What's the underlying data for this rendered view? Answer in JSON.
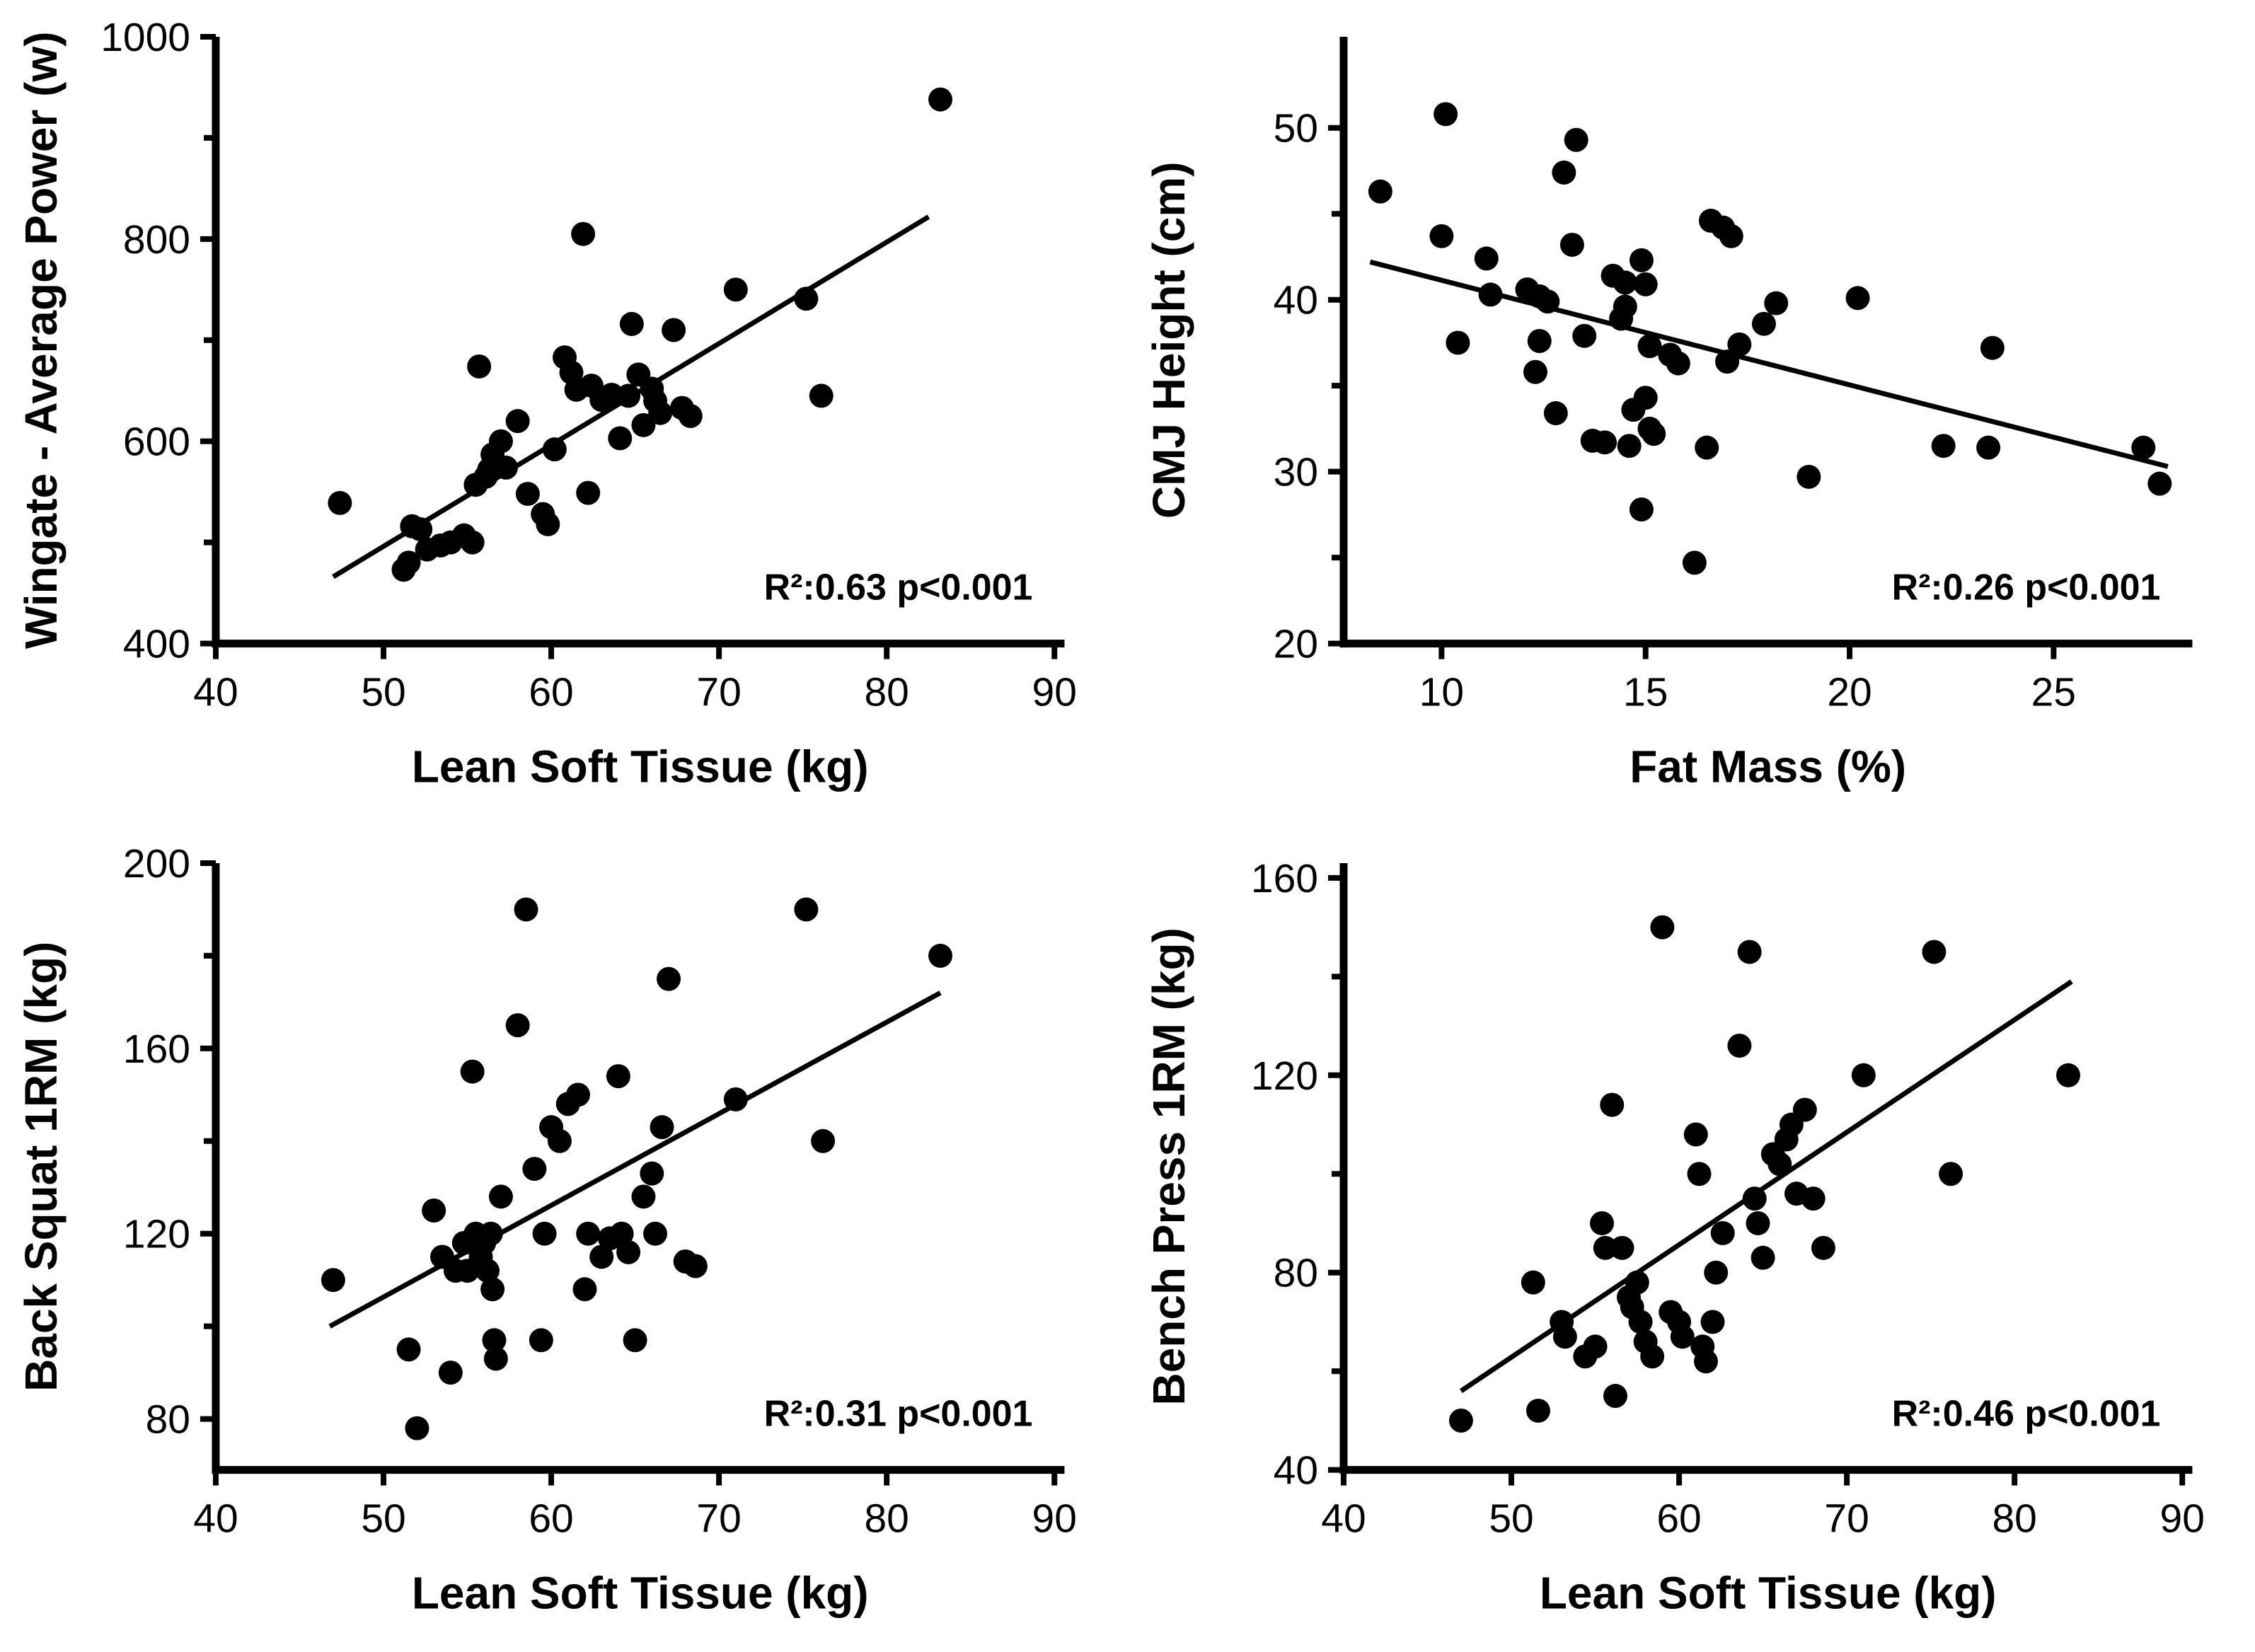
{
  "figure": {
    "background": "#ffffff",
    "ink_color": "#000000",
    "panel_count": 4
  },
  "chart_data": [
    {
      "id": "wingate",
      "type": "scatter",
      "title": "",
      "xlabel": "Lean Soft Tissue (kg)",
      "ylabel": "Wingate - Average Power (w)",
      "annotation": "R²:0.63 p<0.001",
      "legend": "none",
      "grid": false,
      "xlim": [
        40,
        90
      ],
      "ylim": [
        400,
        1000
      ],
      "xlim_draw": [
        40,
        90.6
      ],
      "ylim_draw": [
        400,
        1000
      ],
      "xticks": [
        40,
        50,
        60,
        70,
        80,
        90
      ],
      "yticks_major": [
        400,
        600,
        800,
        1000
      ],
      "yticks_minor": [
        500,
        700,
        900
      ],
      "trendline": {
        "x1": 47.0,
        "y1": 466,
        "x2": 82.5,
        "y2": 822
      },
      "points": [
        [
          47.4,
          539
        ],
        [
          51.2,
          473
        ],
        [
          51.5,
          480
        ],
        [
          51.7,
          516
        ],
        [
          52.2,
          513
        ],
        [
          52.6,
          493
        ],
        [
          53.4,
          497
        ],
        [
          54.0,
          500
        ],
        [
          54.8,
          507
        ],
        [
          55.3,
          500
        ],
        [
          55.5,
          557
        ],
        [
          56.1,
          565
        ],
        [
          56.3,
          572
        ],
        [
          56.5,
          587
        ],
        [
          55.7,
          674
        ],
        [
          57.0,
          600
        ],
        [
          57.3,
          574
        ],
        [
          58.0,
          620
        ],
        [
          58.6,
          548
        ],
        [
          59.5,
          528
        ],
        [
          59.8,
          518
        ],
        [
          60.2,
          592
        ],
        [
          60.8,
          683
        ],
        [
          61.2,
          668
        ],
        [
          61.5,
          651
        ],
        [
          61.9,
          805
        ],
        [
          62.2,
          549
        ],
        [
          62.4,
          655
        ],
        [
          63.0,
          641
        ],
        [
          63.6,
          646
        ],
        [
          64.1,
          603
        ],
        [
          64.6,
          645
        ],
        [
          64.8,
          716
        ],
        [
          65.2,
          666
        ],
        [
          65.5,
          616
        ],
        [
          66.0,
          652
        ],
        [
          66.2,
          640
        ],
        [
          66.5,
          628
        ],
        [
          67.3,
          710
        ],
        [
          67.8,
          633
        ],
        [
          68.3,
          625
        ],
        [
          71.0,
          750
        ],
        [
          75.2,
          741
        ],
        [
          76.1,
          645
        ],
        [
          83.2,
          938
        ]
      ]
    },
    {
      "id": "cmj",
      "type": "scatter",
      "title": "",
      "xlabel": "Fat Mass (%)",
      "ylabel": "CMJ Height (cm)",
      "annotation": "R²:0.26 p<0.001",
      "legend": "none",
      "grid": false,
      "xlim": [
        10,
        25
      ],
      "ylim": [
        20,
        50
      ],
      "xlim_draw": [
        7.6,
        28.4
      ],
      "ylim_draw": [
        20,
        55.3
      ],
      "xticks": [
        10,
        15,
        20,
        25
      ],
      "yticks_major": [
        20,
        30,
        40,
        50
      ],
      "yticks_minor": [
        25,
        35,
        45
      ],
      "trendline": {
        "x1": 8.25,
        "y1": 42.2,
        "x2": 27.8,
        "y2": 30.3
      },
      "points": [
        [
          8.5,
          46.3
        ],
        [
          10.1,
          50.8
        ],
        [
          10.0,
          43.7
        ],
        [
          10.4,
          37.5
        ],
        [
          11.1,
          42.4
        ],
        [
          11.2,
          40.3
        ],
        [
          12.1,
          40.6
        ],
        [
          12.4,
          40.2
        ],
        [
          12.6,
          39.9
        ],
        [
          12.4,
          37.6
        ],
        [
          12.3,
          35.8
        ],
        [
          12.8,
          33.4
        ],
        [
          13.0,
          47.4
        ],
        [
          13.3,
          49.3
        ],
        [
          13.2,
          43.2
        ],
        [
          13.5,
          37.9
        ],
        [
          13.7,
          31.8
        ],
        [
          14.0,
          31.7
        ],
        [
          14.2,
          41.4
        ],
        [
          14.5,
          41.0
        ],
        [
          14.5,
          39.6
        ],
        [
          14.4,
          38.9
        ],
        [
          14.6,
          31.5
        ],
        [
          14.7,
          33.6
        ],
        [
          14.9,
          42.3
        ],
        [
          15.0,
          40.9
        ],
        [
          15.1,
          37.3
        ],
        [
          15.0,
          34.3
        ],
        [
          15.1,
          32.5
        ],
        [
          15.2,
          32.2
        ],
        [
          14.9,
          27.8
        ],
        [
          15.6,
          36.8
        ],
        [
          15.8,
          36.3
        ],
        [
          16.2,
          24.7
        ],
        [
          16.5,
          31.4
        ],
        [
          16.6,
          44.6
        ],
        [
          16.9,
          44.2
        ],
        [
          17.1,
          43.7
        ],
        [
          17.0,
          36.4
        ],
        [
          17.3,
          37.4
        ],
        [
          17.9,
          38.6
        ],
        [
          18.2,
          39.8
        ],
        [
          19.0,
          29.7
        ],
        [
          20.2,
          40.1
        ],
        [
          22.3,
          31.5
        ],
        [
          23.5,
          37.2
        ],
        [
          23.4,
          31.4
        ],
        [
          27.2,
          31.4
        ],
        [
          27.6,
          29.3
        ]
      ]
    },
    {
      "id": "squat",
      "type": "scatter",
      "title": "",
      "xlabel": "Lean Soft Tissue (kg)",
      "ylabel": "Back Squat 1RM (kg)",
      "annotation": "R²:0.31 p<0.001",
      "legend": "none",
      "grid": false,
      "xlim": [
        40,
        90
      ],
      "ylim": [
        80,
        200
      ],
      "xlim_draw": [
        40,
        90.6
      ],
      "ylim_draw": [
        69,
        200
      ],
      "xticks": [
        40,
        50,
        60,
        70,
        80,
        90
      ],
      "yticks_major": [
        80,
        120,
        160,
        200
      ],
      "yticks_minor": [
        100,
        140,
        180
      ],
      "trendline": {
        "x1": 46.8,
        "y1": 100,
        "x2": 83.2,
        "y2": 172
      },
      "points": [
        [
          47.0,
          110
        ],
        [
          51.5,
          95
        ],
        [
          52.0,
          78
        ],
        [
          53.0,
          125
        ],
        [
          53.5,
          115
        ],
        [
          54.0,
          90
        ],
        [
          54.3,
          112
        ],
        [
          54.8,
          118
        ],
        [
          55.0,
          112
        ],
        [
          55.3,
          155
        ],
        [
          55.5,
          120
        ],
        [
          55.8,
          115
        ],
        [
          56.0,
          118
        ],
        [
          56.2,
          112
        ],
        [
          56.4,
          120
        ],
        [
          56.5,
          108
        ],
        [
          56.6,
          97
        ],
        [
          56.7,
          93
        ],
        [
          57.0,
          128
        ],
        [
          58.0,
          165
        ],
        [
          58.5,
          190
        ],
        [
          59.0,
          134
        ],
        [
          59.4,
          97
        ],
        [
          59.6,
          120
        ],
        [
          60.0,
          143
        ],
        [
          60.5,
          140
        ],
        [
          61.0,
          148
        ],
        [
          61.6,
          150
        ],
        [
          62.0,
          108
        ],
        [
          62.2,
          120
        ],
        [
          63.0,
          115
        ],
        [
          63.5,
          119
        ],
        [
          64.0,
          154
        ],
        [
          64.2,
          120
        ],
        [
          64.6,
          116
        ],
        [
          65.0,
          97
        ],
        [
          65.5,
          128
        ],
        [
          66.0,
          133
        ],
        [
          66.2,
          120
        ],
        [
          66.6,
          143
        ],
        [
          67.0,
          175
        ],
        [
          68.0,
          114
        ],
        [
          68.6,
          113
        ],
        [
          71.0,
          149
        ],
        [
          75.2,
          190
        ],
        [
          76.2,
          140
        ],
        [
          83.2,
          180
        ]
      ]
    },
    {
      "id": "bench",
      "type": "scatter",
      "title": "",
      "xlabel": "Lean Soft Tissue (kg)",
      "ylabel": "Bench Press 1RM (kg)",
      "annotation": "R²:0.46 p<0.001",
      "legend": "none",
      "grid": false,
      "xlim": [
        40,
        90
      ],
      "ylim": [
        40,
        160
      ],
      "xlim_draw": [
        40,
        90.6
      ],
      "ylim_draw": [
        40,
        163
      ],
      "xticks": [
        40,
        50,
        60,
        70,
        80,
        90
      ],
      "yticks_major": [
        40,
        80,
        120,
        160
      ],
      "yticks_minor": [
        60,
        100,
        140
      ],
      "trendline": {
        "x1": 47.0,
        "y1": 56,
        "x2": 83.4,
        "y2": 139
      },
      "points": [
        [
          47.0,
          50
        ],
        [
          51.3,
          78
        ],
        [
          51.6,
          52
        ],
        [
          53.0,
          70
        ],
        [
          53.2,
          67
        ],
        [
          54.4,
          63
        ],
        [
          55.0,
          65
        ],
        [
          55.4,
          90
        ],
        [
          55.6,
          85
        ],
        [
          56.0,
          114
        ],
        [
          56.2,
          55
        ],
        [
          56.6,
          85
        ],
        [
          57.0,
          75
        ],
        [
          57.2,
          73
        ],
        [
          57.5,
          78
        ],
        [
          57.7,
          70
        ],
        [
          58.0,
          66
        ],
        [
          58.4,
          63
        ],
        [
          59.0,
          150
        ],
        [
          59.5,
          72
        ],
        [
          60.0,
          70
        ],
        [
          60.2,
          67
        ],
        [
          61.0,
          108
        ],
        [
          61.2,
          100
        ],
        [
          61.4,
          65
        ],
        [
          61.6,
          62
        ],
        [
          62.0,
          70
        ],
        [
          62.2,
          80
        ],
        [
          62.6,
          88
        ],
        [
          63.6,
          126
        ],
        [
          64.2,
          145
        ],
        [
          64.5,
          95
        ],
        [
          64.7,
          90
        ],
        [
          65.0,
          83
        ],
        [
          65.6,
          104
        ],
        [
          66.0,
          102
        ],
        [
          66.4,
          107
        ],
        [
          66.7,
          110
        ],
        [
          67.0,
          96
        ],
        [
          67.5,
          113
        ],
        [
          68.0,
          95
        ],
        [
          68.6,
          85
        ],
        [
          71.0,
          120
        ],
        [
          75.2,
          145
        ],
        [
          76.2,
          100
        ],
        [
          83.2,
          120
        ]
      ]
    }
  ]
}
